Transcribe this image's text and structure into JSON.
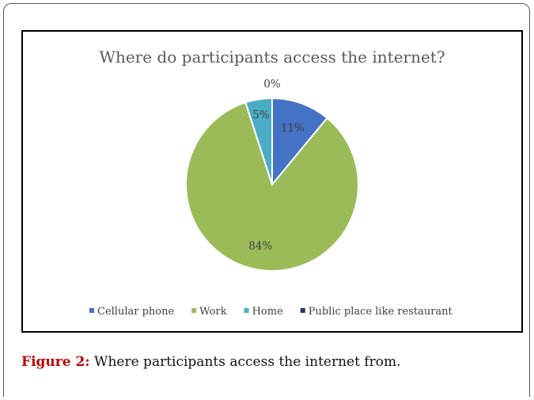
{
  "chart_data": {
    "type": "pie",
    "title": "Where do participants access the internet?",
    "categories": [
      "Cellular phone",
      "Work",
      "Home",
      "Public place like restaurant"
    ],
    "values": [
      11,
      84,
      5,
      0
    ],
    "labels": [
      "11%",
      "84%",
      "5%",
      "0%"
    ],
    "colors": [
      "#4472c4",
      "#9bbb59",
      "#4bacc6",
      "#1f3864"
    ],
    "legend": "bottom"
  },
  "caption": {
    "label": "Figure 2:",
    "text": " Where participants access the internet from."
  }
}
